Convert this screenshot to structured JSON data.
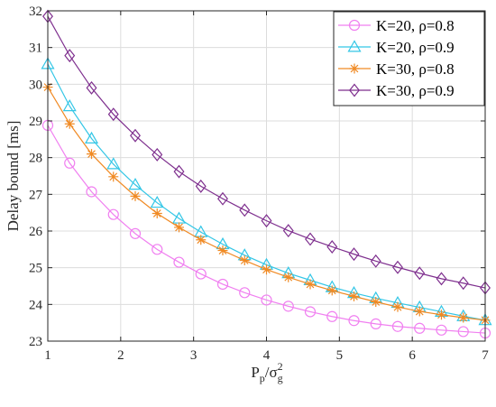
{
  "chart_data": {
    "type": "line",
    "xlabel": "Pp/σg2",
    "ylabel": "Delay bound [ms]",
    "xlim": [
      1,
      7
    ],
    "ylim": [
      23,
      32
    ],
    "xticks": [
      1,
      2,
      3,
      4,
      5,
      6,
      7
    ],
    "yticks": [
      23,
      24,
      25,
      26,
      27,
      28,
      29,
      30,
      31,
      32
    ],
    "grid": true,
    "legend_position": "top-right",
    "x": [
      1.0,
      1.3,
      1.6,
      1.9,
      2.2,
      2.5,
      2.8,
      3.1,
      3.4,
      3.7,
      4.0,
      4.3,
      4.6,
      4.9,
      5.2,
      5.5,
      5.8,
      6.1,
      6.4,
      6.7,
      7.0
    ],
    "series": [
      {
        "name": "K=20, ρ=0.8",
        "marker": "circle",
        "color": "#f07ff0",
        "values": [
          28.88,
          27.85,
          27.07,
          26.45,
          25.93,
          25.5,
          25.15,
          24.83,
          24.55,
          24.32,
          24.12,
          23.95,
          23.8,
          23.67,
          23.56,
          23.47,
          23.4,
          23.35,
          23.3,
          23.26,
          23.22
        ]
      },
      {
        "name": "K=20, ρ=0.9",
        "marker": "triangle",
        "color": "#33c6e6",
        "values": [
          30.55,
          29.4,
          28.52,
          27.82,
          27.26,
          26.77,
          26.34,
          25.97,
          25.64,
          25.34,
          25.08,
          24.85,
          24.66,
          24.47,
          24.31,
          24.17,
          24.04,
          23.92,
          23.8,
          23.68,
          23.57
        ]
      },
      {
        "name": "K=30, ρ=0.8",
        "marker": "asterisk",
        "color": "#f08a24",
        "values": [
          29.92,
          28.92,
          28.1,
          27.48,
          26.95,
          26.48,
          26.1,
          25.76,
          25.47,
          25.2,
          24.95,
          24.74,
          24.55,
          24.38,
          24.22,
          24.07,
          23.93,
          23.81,
          23.72,
          23.64,
          23.57
        ]
      },
      {
        "name": "K=30, ρ=0.9",
        "marker": "diamond",
        "color": "#7e2f8e",
        "values": [
          31.85,
          30.78,
          29.9,
          29.18,
          28.6,
          28.08,
          27.62,
          27.22,
          26.88,
          26.57,
          26.28,
          26.01,
          25.78,
          25.57,
          25.37,
          25.18,
          25.01,
          24.85,
          24.7,
          24.58,
          24.45
        ]
      }
    ]
  }
}
